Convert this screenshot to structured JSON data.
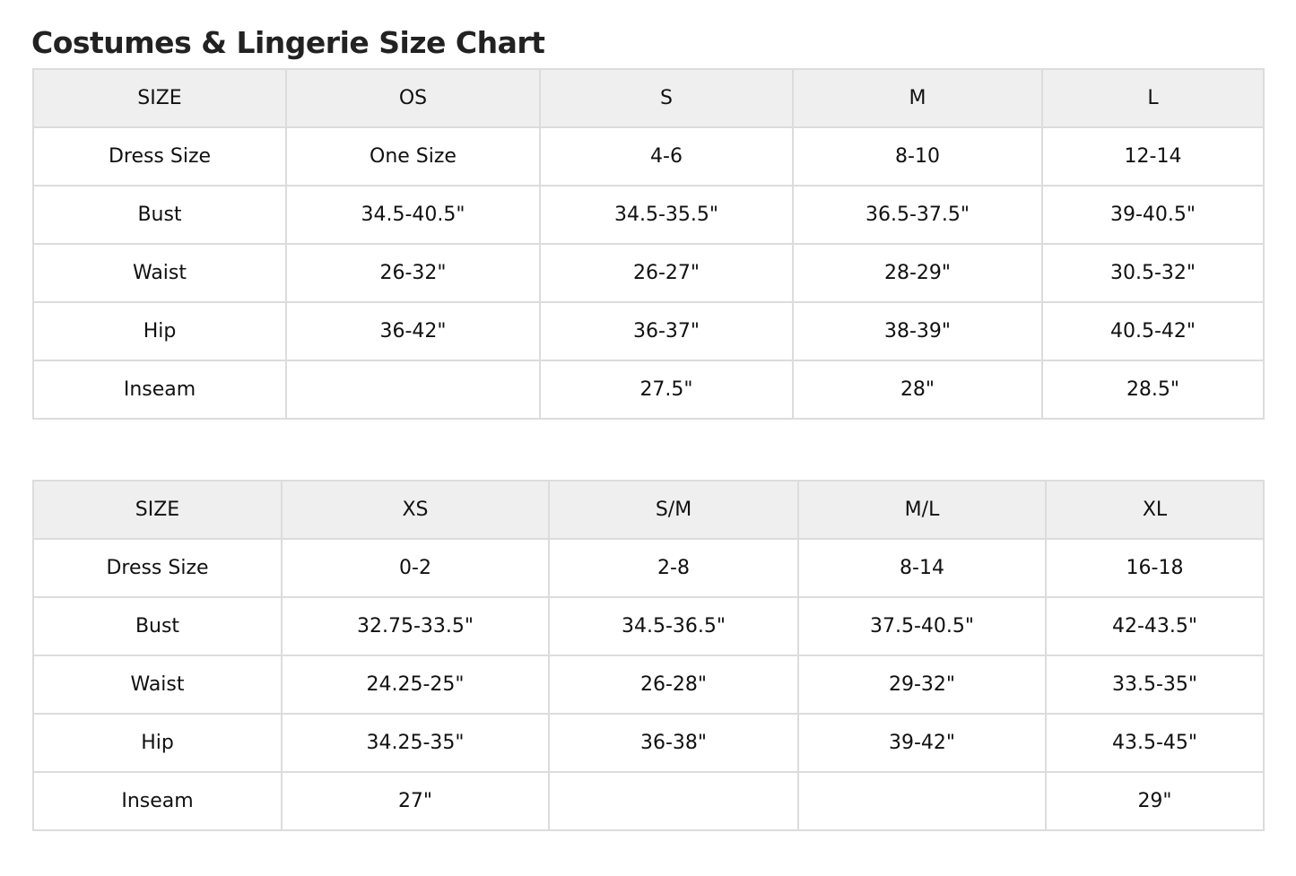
{
  "title": "Costumes & Lingerie Size Chart",
  "tables": [
    {
      "header": [
        "SIZE",
        "OS",
        "S",
        "M",
        "L"
      ],
      "rows": [
        [
          "Dress Size",
          "One Size",
          "4-6",
          "8-10",
          "12-14"
        ],
        [
          "Bust",
          "34.5-40.5\"",
          "34.5-35.5\"",
          "36.5-37.5\"",
          "39-40.5\""
        ],
        [
          "Waist",
          "26-32\"",
          "26-27\"",
          "28-29\"",
          "30.5-32\""
        ],
        [
          "Hip",
          "36-42\"",
          "36-37\"",
          "38-39\"",
          "40.5-42\""
        ],
        [
          "Inseam",
          "",
          "27.5\"",
          "28\"",
          "28.5\""
        ]
      ]
    },
    {
      "header": [
        "SIZE",
        "XS",
        "S/M",
        "M/L",
        "XL"
      ],
      "rows": [
        [
          "Dress Size",
          "0-2",
          "2-8",
          "8-14",
          "16-18"
        ],
        [
          "Bust",
          "32.75-33.5\"",
          "34.5-36.5\"",
          "37.5-40.5\"",
          "42-43.5\""
        ],
        [
          "Waist",
          "24.25-25\"",
          "26-28\"",
          "29-32\"",
          "33.5-35\""
        ],
        [
          "Hip",
          "34.25-35\"",
          "36-38\"",
          "39-42\"",
          "43.5-45\""
        ],
        [
          "Inseam",
          "27\"",
          "",
          "",
          "29\""
        ]
      ]
    }
  ]
}
